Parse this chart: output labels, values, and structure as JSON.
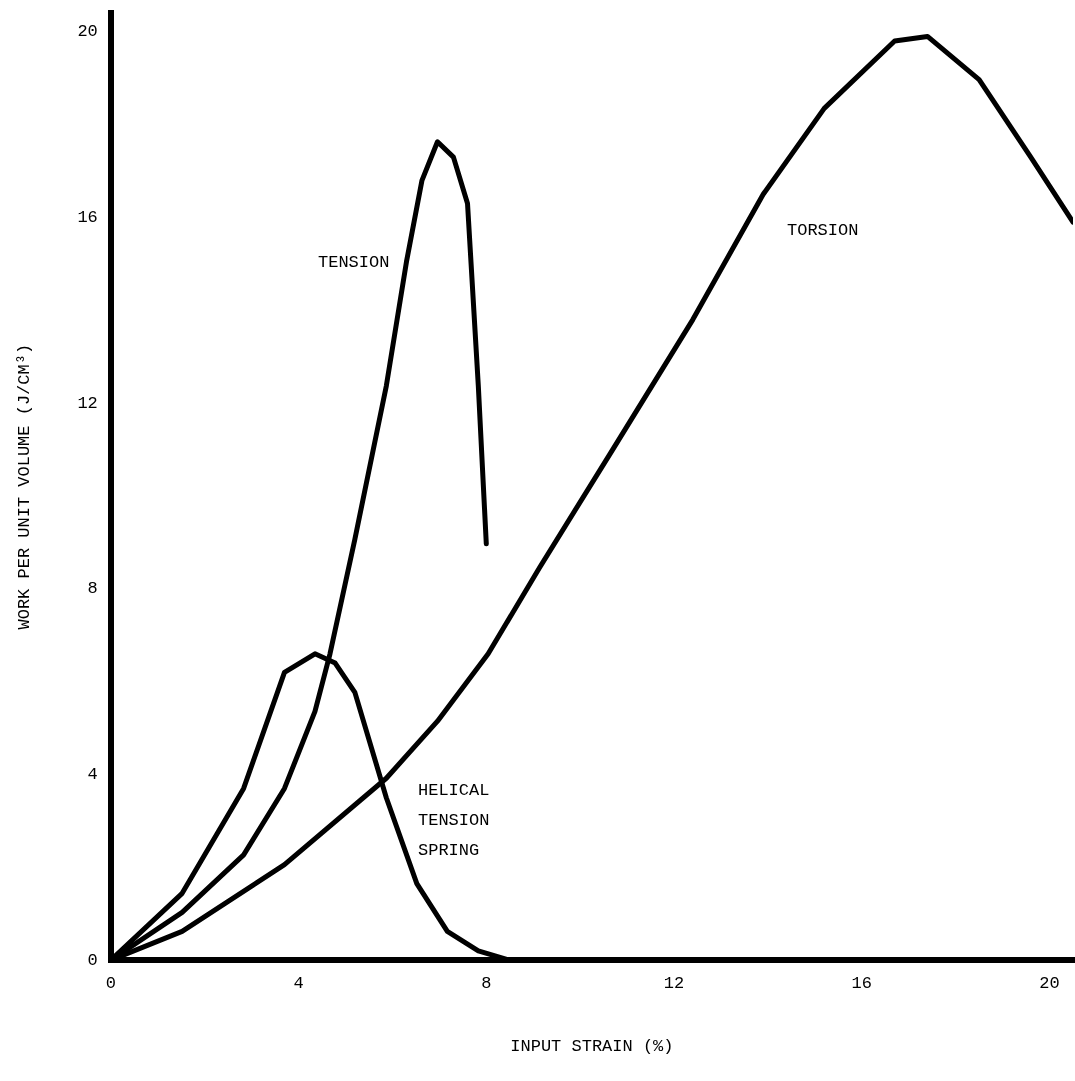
{
  "chart_data": {
    "type": "line",
    "xlabel": "INPUT STRAIN (%)",
    "ylabel": "WORK PER UNIT VOLUME (J/CM³)",
    "xlim": [
      0,
      20.5
    ],
    "ylim": [
      0,
      20.4
    ],
    "xticks": [
      0,
      4,
      8,
      12,
      16,
      20
    ],
    "yticks": [
      0,
      4,
      8,
      12,
      16,
      20
    ],
    "grid": false,
    "legend": false,
    "marker": "none",
    "line_style": "solid",
    "series": [
      {
        "name": "TENSION",
        "color": "#000000",
        "x": [
          0,
          1.52,
          2.83,
          3.7,
          4.35,
          4.67,
          5.2,
          5.87,
          6.3,
          6.63,
          6.96,
          7.3,
          7.6,
          7.83,
          8.0
        ],
        "values": [
          0,
          1.03,
          2.27,
          3.7,
          5.36,
          6.6,
          9.07,
          12.37,
          15.05,
          16.8,
          17.63,
          17.3,
          16.3,
          12.37,
          8.97
        ]
      },
      {
        "name": "TORSION",
        "color": "#000000",
        "x": [
          0,
          1.52,
          3.7,
          5.87,
          6.96,
          8.04,
          9.13,
          10.65,
          12.4,
          13.9,
          15.2,
          16.7,
          17.4,
          18.5,
          19.6,
          20.5
        ],
        "values": [
          0,
          0.62,
          2.06,
          3.92,
          5.15,
          6.6,
          8.45,
          10.93,
          13.8,
          16.5,
          18.35,
          19.8,
          19.9,
          18.97,
          17.3,
          15.9
        ]
      },
      {
        "name": "HELICAL TENSION SPRING",
        "color": "#000000",
        "x": [
          0,
          1.52,
          2.83,
          3.7,
          4.35,
          4.78,
          5.2,
          5.87,
          6.52,
          7.17,
          7.83,
          8.5
        ],
        "values": [
          0,
          1.44,
          3.7,
          6.2,
          6.6,
          6.4,
          5.77,
          3.5,
          1.65,
          0.62,
          0.2,
          0
        ]
      }
    ]
  }
}
